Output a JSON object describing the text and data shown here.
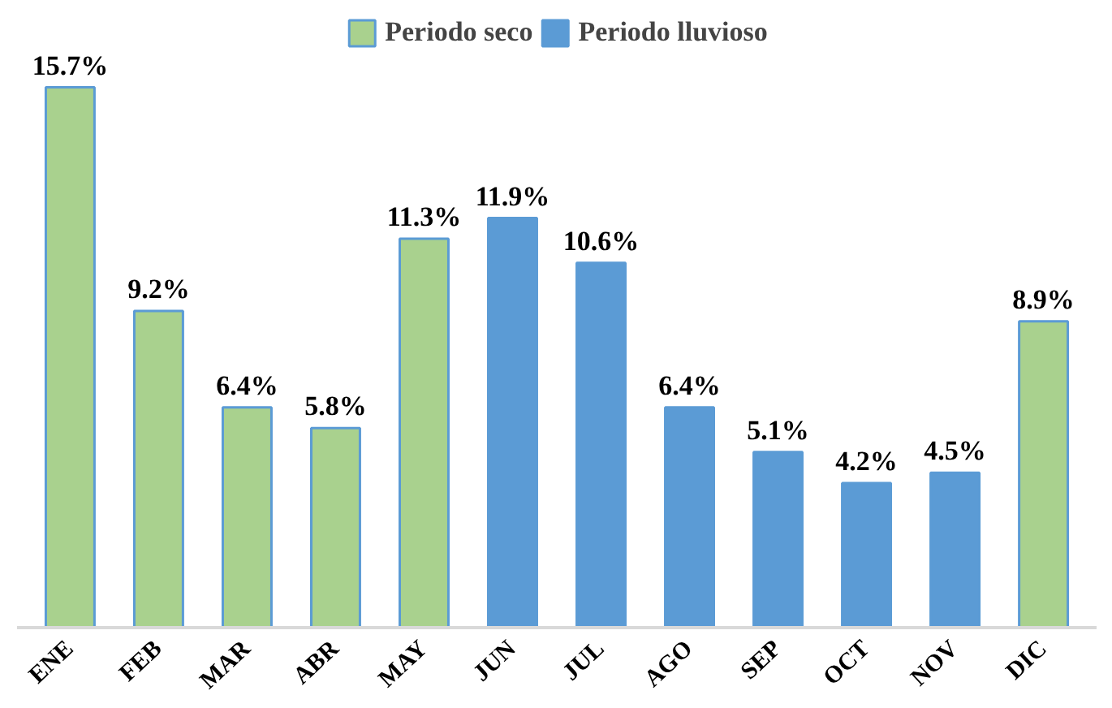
{
  "chart_data": {
    "type": "bar",
    "categories": [
      "ENE",
      "FEB",
      "MAR",
      "ABR",
      "MAY",
      "JUN",
      "JUL",
      "AGO",
      "SEP",
      "OCT",
      "NOV",
      "DIC"
    ],
    "series": [
      {
        "name": "Periodo seco",
        "color": "#a9d18e",
        "values": [
          15.7,
          9.2,
          6.4,
          5.8,
          11.3,
          null,
          null,
          null,
          null,
          null,
          null,
          8.9
        ],
        "value_labels": [
          "15.7%",
          "9.2%",
          "6.4%",
          "5.8%",
          "11.3%",
          null,
          null,
          null,
          null,
          null,
          null,
          "8.9%"
        ]
      },
      {
        "name": "Periodo lluvioso",
        "color": "#5b9bd5",
        "values": [
          null,
          null,
          null,
          null,
          null,
          11.9,
          10.6,
          6.4,
          5.1,
          4.2,
          4.5,
          null
        ],
        "value_labels": [
          null,
          null,
          null,
          null,
          null,
          "11.9%",
          "10.6%",
          "6.4%",
          "5.1%",
          "4.2%",
          "4.5%",
          null
        ]
      }
    ],
    "stacked": true,
    "tick_labels": "x",
    "legend": "top"
  }
}
